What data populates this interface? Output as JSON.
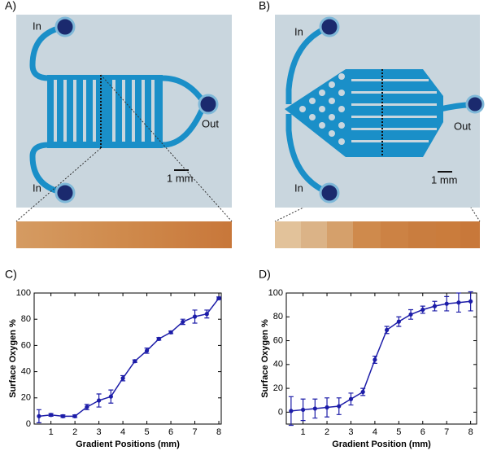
{
  "figure": {
    "panel_labels": [
      "A)",
      "B)",
      "C)",
      "D)"
    ],
    "photo_a": {
      "inlet_labels": [
        "In",
        "In"
      ],
      "outlet_label": "Out",
      "scale_label": "1 mm"
    },
    "photo_b": {
      "inlet_labels": [
        "In",
        "In"
      ],
      "outlet_label": "Out",
      "scale_label": "1 mm"
    }
  },
  "chart_data": [
    {
      "type": "line",
      "y_label": "Surface Oxygen %",
      "x_label": "Gradient Positions (mm)",
      "color": "#1c1ca8",
      "x": [
        0.5,
        1,
        1.5,
        2,
        2.5,
        3,
        3.5,
        4,
        4.5,
        5,
        5.5,
        6,
        6.5,
        7,
        7.5,
        8
      ],
      "values": [
        6,
        7,
        6,
        6,
        13,
        18,
        21,
        35,
        48,
        56,
        65,
        70,
        78,
        82,
        84,
        96
      ],
      "errors": [
        5,
        1,
        1,
        1,
        2,
        5,
        5,
        2,
        1,
        2,
        1,
        1,
        2,
        5,
        3,
        1
      ],
      "xlim": [
        0.3,
        8.1
      ],
      "ylim": [
        0,
        100
      ],
      "xticks": [
        1,
        2,
        3,
        4,
        5,
        6,
        7,
        8
      ],
      "yticks": [
        0,
        20,
        40,
        60,
        80,
        100
      ]
    },
    {
      "type": "line",
      "y_label": "Surface Oxygen %",
      "x_label": "Gradient Position (mm)",
      "color": "#1c1ca8",
      "x": [
        0.5,
        1,
        1.5,
        2,
        2.5,
        3,
        3.5,
        4,
        4.5,
        5,
        5.5,
        6,
        6.5,
        7,
        7.5,
        8
      ],
      "values": [
        1,
        2,
        3,
        4,
        5,
        11,
        17,
        44,
        69,
        76,
        82,
        86,
        89,
        91,
        92,
        93
      ],
      "errors": [
        12,
        9,
        8,
        8,
        7,
        5,
        3,
        3,
        3,
        4,
        4,
        3,
        4,
        6,
        8,
        8
      ],
      "xlim": [
        0.3,
        8.25
      ],
      "ylim": [
        -10,
        100
      ],
      "xticks": [
        1,
        2,
        3,
        4,
        5,
        6,
        7,
        8
      ],
      "yticks": [
        0,
        20,
        40,
        60,
        80,
        100
      ]
    }
  ]
}
